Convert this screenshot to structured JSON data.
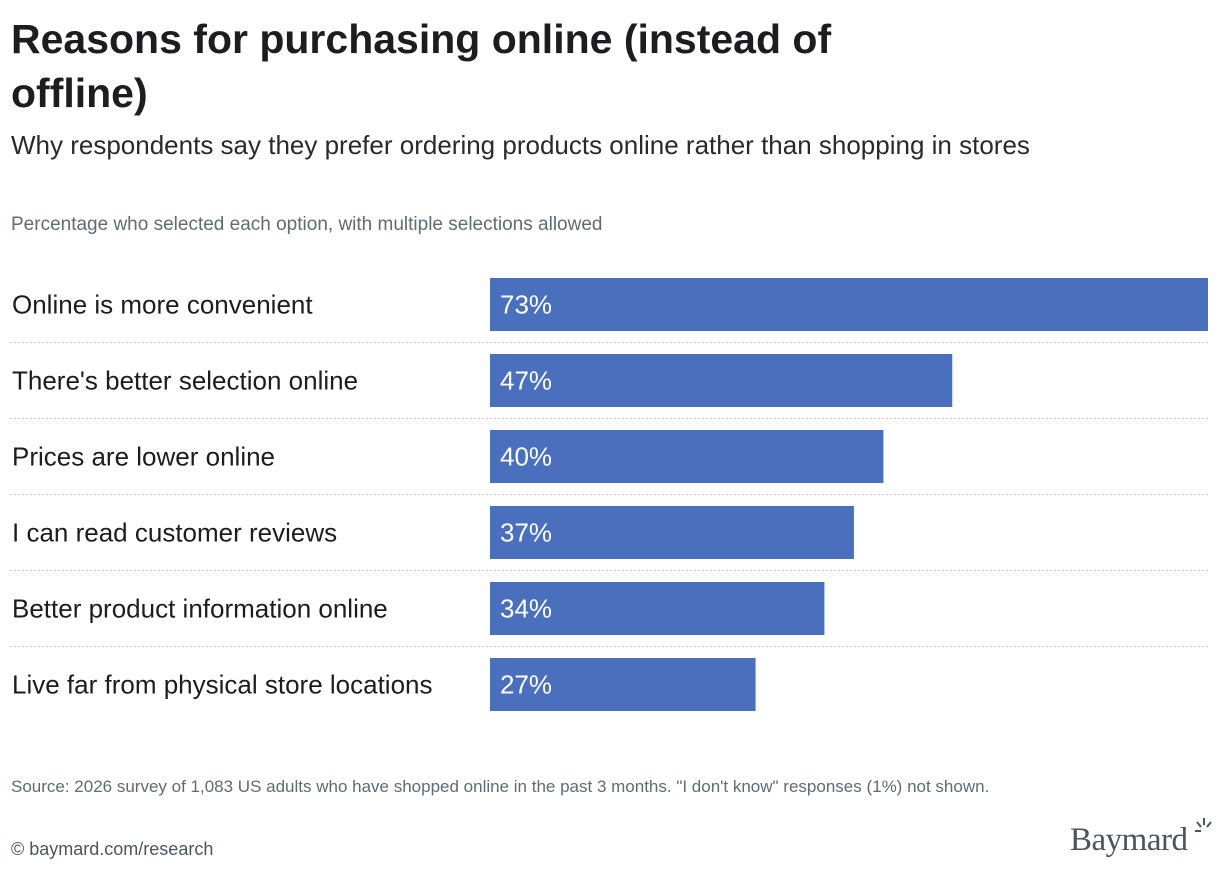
{
  "title": "Reasons for purchasing online (instead of offline)",
  "subtitle": "Why respondents say they prefer ordering products online rather than shopping in stores",
  "note": "Percentage who selected each option, with multiple selections allowed",
  "source": "Source: 2026 survey of 1,083 US adults who have shopped online in the past 3 months. \"I don't know\" responses (1%) not shown.",
  "credit": "© baymard.com/research",
  "logo": {
    "text": "Baymard",
    "icon": "baymard-sparkle-icon"
  },
  "colors": {
    "bar": "#4a6fbd",
    "bar_label": "#ffffff",
    "divider": "#cfcfcf"
  },
  "chart_data": {
    "type": "bar",
    "orientation": "horizontal",
    "categories": [
      "Online is more convenient",
      "There's better selection online",
      "Prices are lower online",
      "I can read customer reviews",
      "Better product information online",
      "Live far from physical store locations"
    ],
    "values": [
      73,
      47,
      40,
      37,
      34,
      27
    ],
    "value_labels": [
      "73%",
      "47%",
      "40%",
      "37%",
      "34%",
      "27%"
    ],
    "unit": "%",
    "xlim": [
      0,
      73
    ],
    "grid": false,
    "legend": "none"
  }
}
